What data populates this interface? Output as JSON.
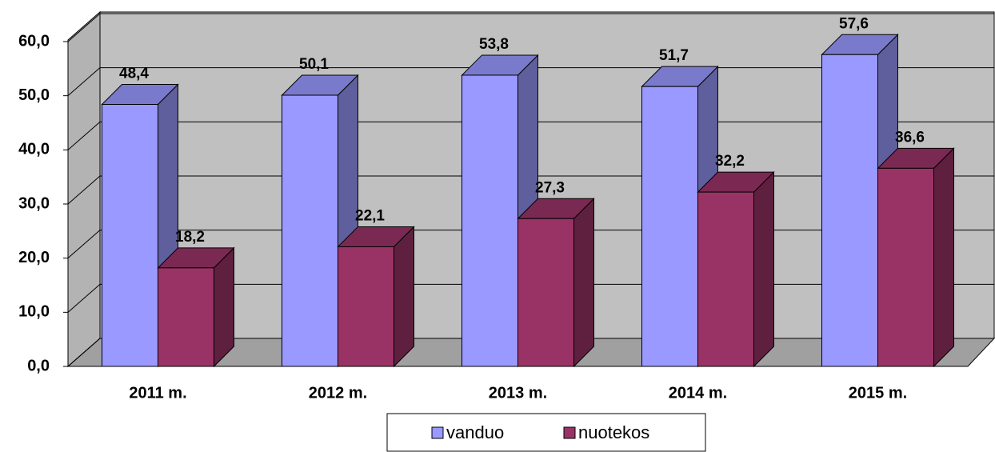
{
  "chart_data": {
    "type": "bar3d",
    "categories": [
      "2011 m.",
      "2012 m.",
      "2013 m.",
      "2014 m.",
      "2015 m."
    ],
    "series": [
      {
        "name": "vanduo",
        "color": "#9999ff",
        "values": [
          48.4,
          50.1,
          53.8,
          51.7,
          57.6
        ],
        "value_labels": [
          "48,4",
          "50,1",
          "53,8",
          "51,7",
          "57,6"
        ]
      },
      {
        "name": "nuotekos",
        "color": "#993366",
        "values": [
          18.2,
          22.1,
          27.3,
          32.2,
          36.6
        ],
        "value_labels": [
          "18,2",
          "22,1",
          "27,3",
          "32,2",
          "36,6"
        ]
      }
    ],
    "ylim": [
      0,
      60
    ],
    "yticks": [
      {
        "value": 0,
        "label": "0,0"
      },
      {
        "value": 10,
        "label": "10,0"
      },
      {
        "value": 20,
        "label": "20,0"
      },
      {
        "value": 30,
        "label": "30,0"
      },
      {
        "value": 40,
        "label": "40,0"
      },
      {
        "value": 50,
        "label": "50,0"
      },
      {
        "value": 60,
        "label": "60,0"
      }
    ],
    "grid": true,
    "legend": "bottom"
  }
}
